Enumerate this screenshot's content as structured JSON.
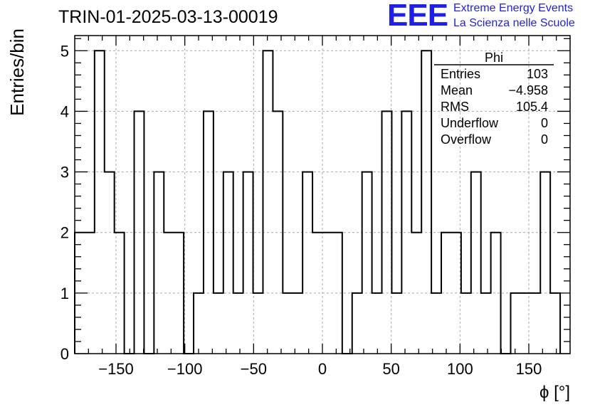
{
  "header": {
    "title": "TRIN-01-2025-03-13-00019",
    "logo_text": "EEE",
    "logo_line1": "Extreme Energy Events",
    "logo_line2": "La Scienza nelle Scuole"
  },
  "stats": {
    "name": "Phi",
    "rows": [
      {
        "label": "Entries",
        "value": "103"
      },
      {
        "label": "Mean",
        "value": "−4.958"
      },
      {
        "label": "RMS",
        "value": "105.4"
      },
      {
        "label": "Underflow",
        "value": "0"
      },
      {
        "label": "Overflow",
        "value": "0"
      }
    ]
  },
  "colors": {
    "logo": "#1f1fe6",
    "grid": "#a8a8a8",
    "line": "#000000"
  },
  "chart_data": {
    "type": "bar",
    "title": "TRIN-01-2025-03-13-00019",
    "xlabel": "ϕ [°]",
    "ylabel": "Entries/bin",
    "xlim": [
      -180,
      180
    ],
    "ylim": [
      0,
      5.25
    ],
    "grid": true,
    "bin_width": 7.2,
    "bin_start": -180,
    "values": [
      2,
      2,
      5,
      3,
      2,
      0,
      4,
      0,
      3,
      2,
      2,
      0,
      1,
      4,
      1,
      3,
      1,
      3,
      1,
      5,
      4,
      1,
      1,
      3,
      2,
      2,
      2,
      0,
      1,
      3,
      1,
      4,
      1,
      4,
      2,
      5,
      1,
      2,
      2,
      1,
      3,
      1,
      2,
      0,
      1,
      1,
      1,
      3,
      1
    ],
    "xticks": [
      -150,
      -100,
      -50,
      0,
      50,
      100,
      150
    ],
    "xtick_labels": [
      "−150",
      "−100",
      "−50",
      "0",
      "50",
      "100",
      "150"
    ],
    "yticks": [
      0,
      1,
      2,
      3,
      4,
      5
    ],
    "ytick_labels": [
      "0",
      "1",
      "2",
      "3",
      "4",
      "5"
    ]
  }
}
